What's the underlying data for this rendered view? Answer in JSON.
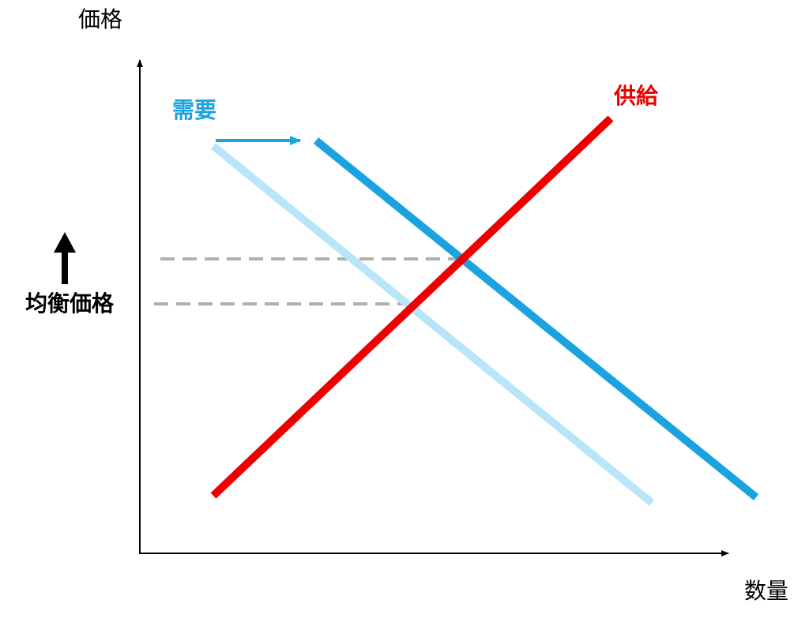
{
  "axes": {
    "y_label": "価格",
    "x_label": "数量"
  },
  "curves": {
    "demand": "需要",
    "supply": "供給"
  },
  "annotation": "均衡価格"
}
